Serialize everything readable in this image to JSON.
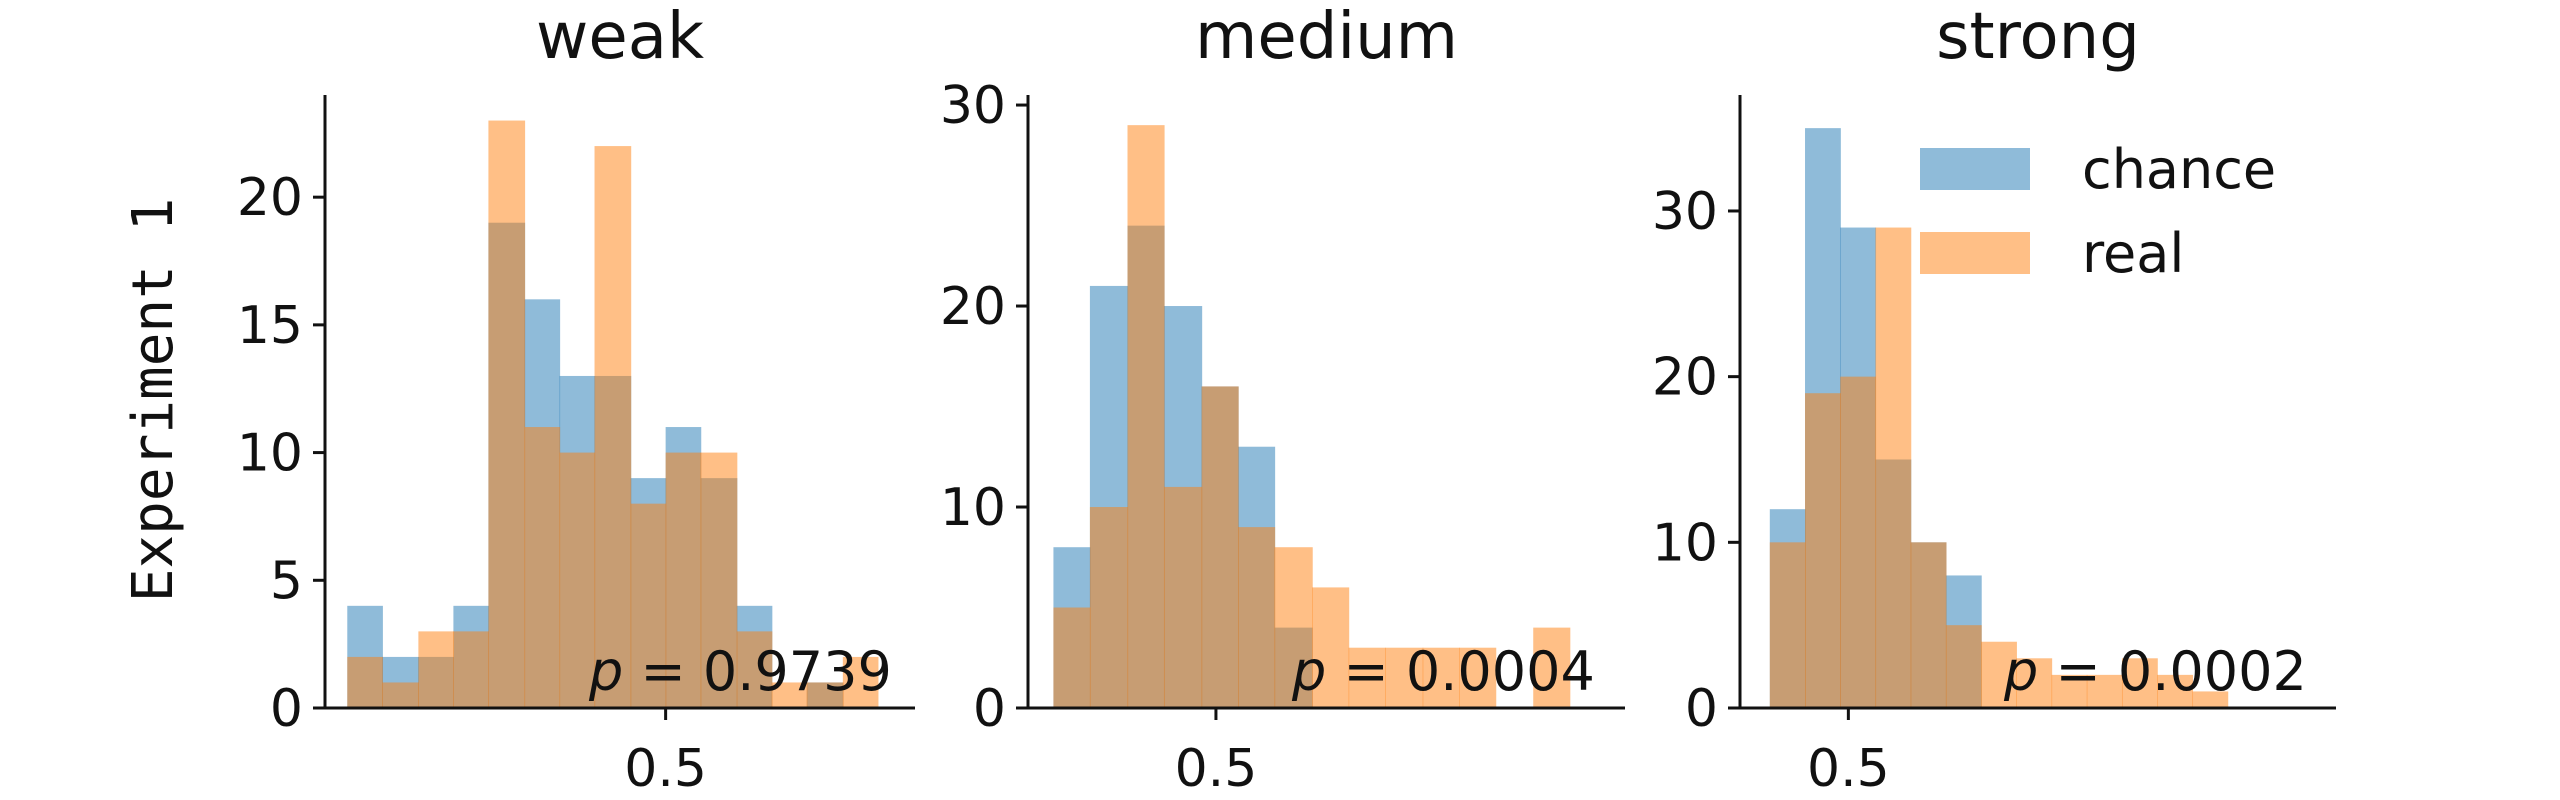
{
  "figure": {
    "ylabel": "Experiment 1"
  },
  "legend": {
    "items": [
      {
        "label": "chance",
        "color": "#1f77b4"
      },
      {
        "label": "real",
        "color": "#ff7f0e"
      }
    ]
  },
  "chart_data": [
    {
      "type": "bar",
      "title": "weak",
      "bin_edges": [
        0.2,
        0.233,
        0.267,
        0.3,
        0.333,
        0.367,
        0.4,
        0.433,
        0.467,
        0.5,
        0.533,
        0.567,
        0.6,
        0.633,
        0.667,
        0.7,
        0.733
      ],
      "series": [
        {
          "name": "chance",
          "values": [
            4,
            2,
            2,
            4,
            19,
            16,
            13,
            13,
            9,
            11,
            9,
            4,
            0,
            1,
            0,
            0
          ]
        },
        {
          "name": "real",
          "values": [
            2,
            1,
            3,
            3,
            23,
            11,
            10,
            22,
            8,
            10,
            10,
            3,
            1,
            1,
            2,
            0
          ]
        }
      ],
      "xticks": [
        0.5
      ],
      "yticks": [
        0,
        5,
        10,
        15,
        20
      ],
      "ylim": [
        0,
        24
      ],
      "xlim": [
        0.179,
        0.735
      ],
      "annotation": {
        "p_label": "p",
        "p_value": "0.9739"
      }
    },
    {
      "type": "bar",
      "title": "medium",
      "bin_edges": [
        0.353,
        0.386,
        0.42,
        0.453,
        0.487,
        0.52,
        0.553,
        0.587,
        0.62,
        0.653,
        0.687,
        0.72,
        0.753,
        0.787,
        0.82,
        0.853,
        0.887
      ],
      "series": [
        {
          "name": "chance",
          "values": [
            8,
            21,
            24,
            20,
            16,
            13,
            4,
            0,
            0,
            0,
            0,
            0,
            0,
            0,
            0,
            0
          ]
        },
        {
          "name": "real",
          "values": [
            5,
            10,
            29,
            11,
            16,
            9,
            8,
            6,
            3,
            3,
            3,
            3,
            0,
            4,
            0,
            0
          ]
        }
      ],
      "xticks": [
        0.5
      ],
      "yticks": [
        0,
        10,
        20,
        30
      ],
      "ylim": [
        0,
        30.5
      ],
      "xlim": [
        0.33,
        0.87
      ],
      "annotation": {
        "p_label": "p",
        "p_value": "0.0004"
      }
    },
    {
      "type": "bar",
      "title": "strong",
      "bin_edges": [
        0.442,
        0.468,
        0.494,
        0.52,
        0.546,
        0.572,
        0.598,
        0.624,
        0.65,
        0.676,
        0.702,
        0.728,
        0.754,
        0.78,
        0.806,
        0.832,
        0.858
      ],
      "series": [
        {
          "name": "chance",
          "values": [
            12,
            35,
            29,
            15,
            10,
            8,
            0,
            0,
            0,
            0,
            0,
            0,
            0,
            0,
            0,
            0
          ]
        },
        {
          "name": "real",
          "values": [
            10,
            19,
            20,
            29,
            10,
            5,
            4,
            3,
            2,
            2,
            3,
            2,
            1,
            0,
            0,
            0
          ]
        }
      ],
      "xticks": [
        0.5
      ],
      "yticks": [
        0,
        10,
        20,
        30
      ],
      "ylim": [
        0,
        37
      ],
      "xlim": [
        0.42,
        0.86
      ],
      "annotation": {
        "p_label": "p",
        "p_value": "0.0002"
      }
    }
  ]
}
